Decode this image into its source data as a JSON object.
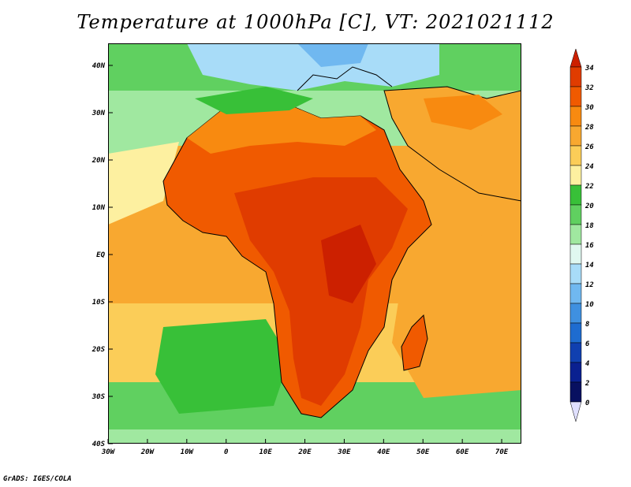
{
  "title": "Temperature at 1000hPa [C], VT: 2021021112",
  "credit": "GrADS: IGES/COLA",
  "map": {
    "lon_range": [
      -30,
      75
    ],
    "lat_range": [
      -40,
      45
    ],
    "lon_ticks": [
      "30W",
      "20W",
      "10W",
      "0",
      "10E",
      "20E",
      "30E",
      "40E",
      "50E",
      "60E",
      "70E"
    ],
    "lat_ticks": [
      "40N",
      "30N",
      "20N",
      "10N",
      "EQ",
      "10S",
      "20S",
      "30S",
      "40S"
    ]
  },
  "colorbar": {
    "levels": [
      "34",
      "32",
      "30",
      "28",
      "26",
      "24",
      "22",
      "20",
      "18",
      "16",
      "14",
      "12",
      "10",
      "8",
      "6",
      "4",
      "2",
      "0"
    ],
    "colors": [
      "#cc2000",
      "#e03c00",
      "#f05a00",
      "#f88a10",
      "#f8a830",
      "#fbcd58",
      "#fdf0a0",
      "#38c038",
      "#60d060",
      "#a0e8a0",
      "#e0f8f0",
      "#a8dcf8",
      "#70b8f0",
      "#3f90e0",
      "#1e6cd0",
      "#1040b0",
      "#0a2090",
      "#081060",
      "#e0e0ff"
    ]
  }
}
